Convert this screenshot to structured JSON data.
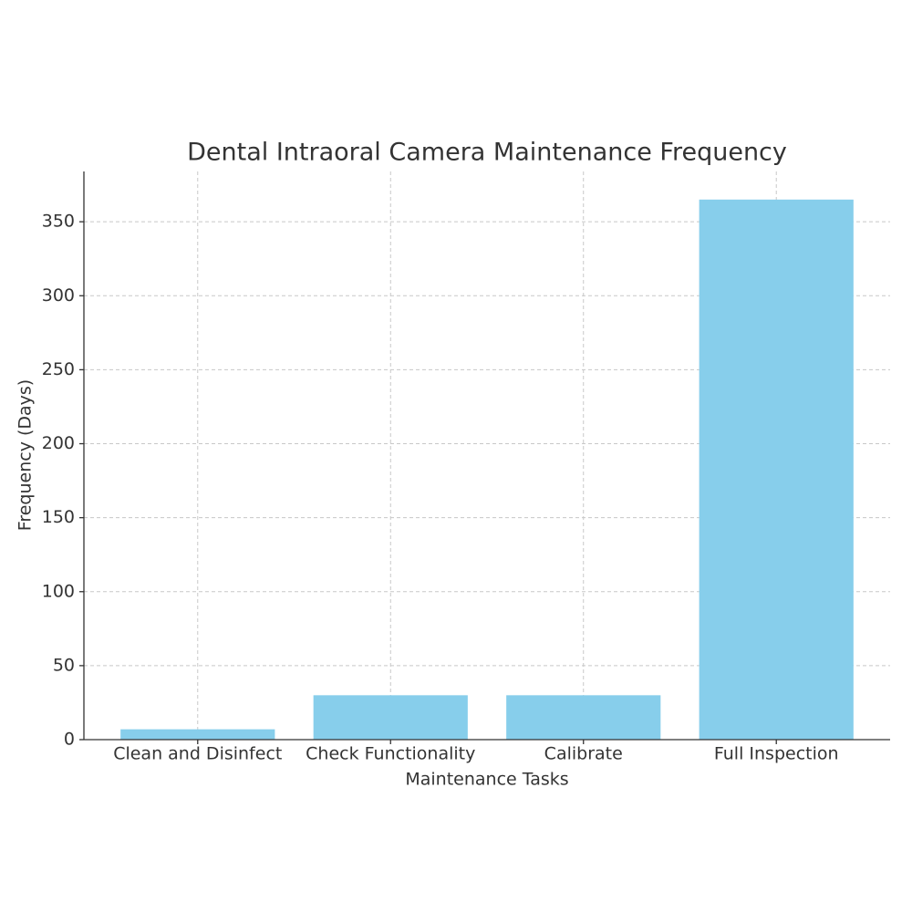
{
  "chart_data": {
    "type": "bar",
    "title": "Dental Intraoral Camera Maintenance Frequency",
    "x_label": "Maintenance Tasks",
    "y_label": "Frequency (Days)",
    "categories": [
      "Clean and Disinfect",
      "Check Functionality",
      "Calibrate",
      "Full Inspection"
    ],
    "values": [
      7,
      30,
      30,
      365
    ],
    "color": "#87ceeb",
    "ylim": [
      0,
      384
    ],
    "yticks": [
      0,
      50,
      100,
      150,
      200,
      250,
      300,
      350
    ],
    "grid": true
  }
}
